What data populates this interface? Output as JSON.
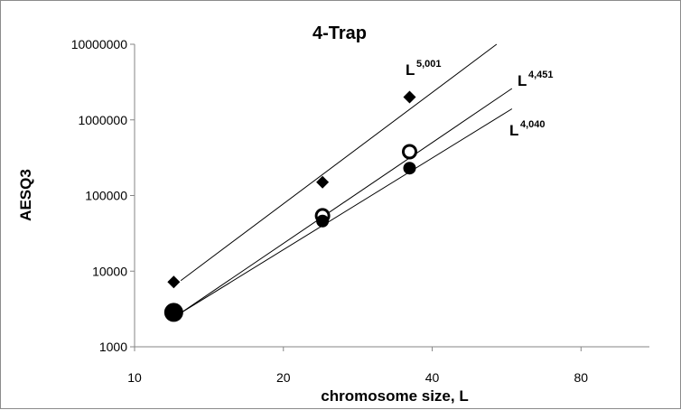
{
  "chart_data": {
    "type": "scatter",
    "title": "4-Trap",
    "xlabel": "chromosome size, L",
    "ylabel": "AESQ3",
    "x_scale": "log2",
    "y_scale": "log10",
    "xlim": [
      10,
      110
    ],
    "ylim": [
      1000,
      10000000
    ],
    "x_ticks": [
      "10",
      "20",
      "40",
      "80"
    ],
    "y_ticks": [
      "1000",
      "10000",
      "100000",
      "1000000",
      "10000000"
    ],
    "grid": false,
    "legend": "none",
    "series": [
      {
        "marker": "diamond",
        "points": [
          [
            12,
            7200
          ],
          [
            24,
            150000
          ],
          [
            36,
            2000000
          ]
        ],
        "fit": {
          "label": "L",
          "exponent": "5,001",
          "x_range": [
            12.4,
            54
          ],
          "y_range": [
            7500,
            10000000
          ]
        }
      },
      {
        "marker": "open-circle",
        "points": [
          [
            12,
            2850
          ],
          [
            24,
            54000
          ],
          [
            36,
            380000
          ]
        ],
        "fit": {
          "label": "L",
          "exponent": "4,451",
          "x_range": [
            12.4,
            58
          ],
          "y_range": [
            2800,
            2600000
          ]
        }
      },
      {
        "marker": "filled-circle",
        "points": [
          [
            12,
            2800
          ],
          [
            24,
            46000
          ],
          [
            36,
            230000
          ]
        ],
        "fit": {
          "label": "L",
          "exponent": "4,040",
          "x_range": [
            12.4,
            58
          ],
          "y_range": [
            2800,
            1400000
          ]
        }
      }
    ]
  }
}
